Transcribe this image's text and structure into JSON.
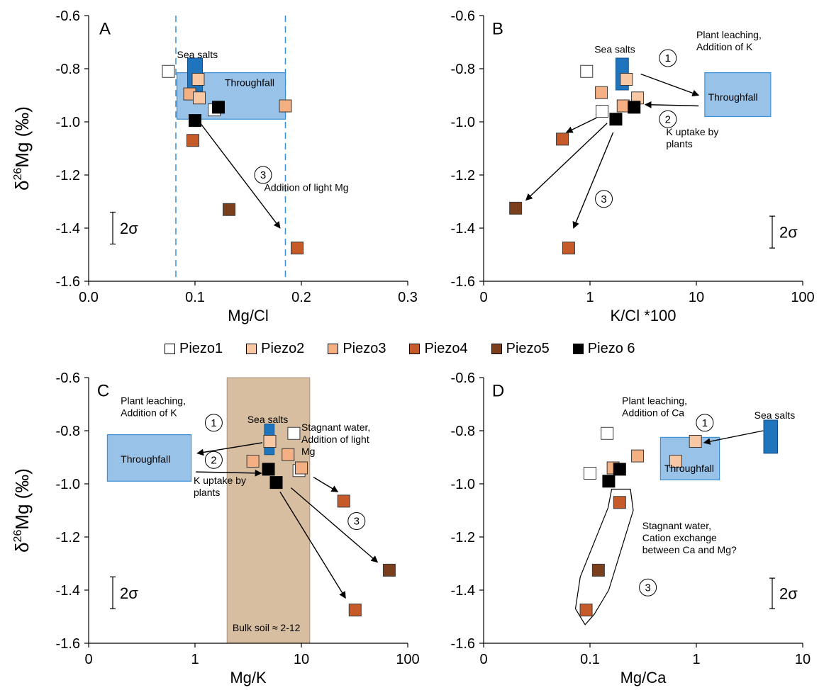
{
  "colors": {
    "throughfall": "#99C2E8",
    "throughfall_stroke": "#3A8FD6",
    "sea_salts": "#1F74BE",
    "bulk_soil": "#D8BEA0",
    "guide_line": "#3A8FD6"
  },
  "legend": [
    {
      "name": "Piezo1",
      "color": "#FFFFFF"
    },
    {
      "name": "Piezo2",
      "color": "#F8C7A4"
    },
    {
      "name": "Piezo3",
      "color": "#F4B083"
    },
    {
      "name": "Piezo4",
      "color": "#C65A28"
    },
    {
      "name": "Piezo5",
      "color": "#7B3F1E"
    },
    {
      "name": "Piezo 6",
      "color": "#000000"
    }
  ],
  "chart_data": [
    {
      "panel": "A",
      "type": "scatter",
      "x_scale": "linear",
      "xlabel": "Mg/Cl",
      "ylabel": "δ26Mg (‰)",
      "xlim": [
        0,
        0.3
      ],
      "ylim": [
        -1.6,
        -0.6
      ],
      "xticks": [
        "0.0",
        "0.1",
        "0.2",
        "0.3"
      ],
      "yticks": [
        "-0.6",
        "-0.8",
        "-1.0",
        "-1.2",
        "-1.4",
        "-1.6"
      ],
      "error_label": "2σ",
      "error_bar": [
        -1.46,
        -1.34
      ],
      "vlines": [
        0.082,
        0.185
      ],
      "boxes": [
        {
          "kind": "throughfall",
          "label": "Throughfall",
          "x": [
            0.083,
            0.185
          ],
          "y": [
            -0.99,
            -0.815
          ]
        },
        {
          "kind": "sea",
          "label": "Sea salts",
          "x": [
            0.093,
            0.107
          ],
          "y": [
            -0.885,
            -0.76
          ]
        }
      ],
      "points": [
        {
          "s": 0,
          "x": 0.075,
          "y": -0.81
        },
        {
          "s": 1,
          "x": 0.103,
          "y": -0.84
        },
        {
          "s": 2,
          "x": 0.095,
          "y": -0.895
        },
        {
          "s": 1,
          "x": 0.104,
          "y": -0.91
        },
        {
          "s": 2,
          "x": 0.185,
          "y": -0.94
        },
        {
          "s": 0,
          "x": 0.118,
          "y": -0.955
        },
        {
          "s": 5,
          "x": 0.122,
          "y": -0.945
        },
        {
          "s": 5,
          "x": 0.1,
          "y": -0.995
        },
        {
          "s": 3,
          "x": 0.098,
          "y": -1.07
        },
        {
          "s": 4,
          "x": 0.132,
          "y": -1.33
        },
        {
          "s": 3,
          "x": 0.196,
          "y": -1.475
        }
      ],
      "arrows": [
        {
          "from": [
            0.105,
            -1.005
          ],
          "to": [
            0.18,
            -1.4
          ]
        }
      ],
      "circles": [
        {
          "t": "3",
          "x": 0.164,
          "y": -1.2
        }
      ],
      "notes": [
        {
          "lines": [
            "A"
          ],
          "x": 0.01,
          "y": -0.67,
          "big": true
        },
        {
          "lines": [
            "Sea salts"
          ],
          "x": 0.083,
          "y": -0.76
        },
        {
          "lines": [
            "Throughfall"
          ],
          "x": 0.128,
          "y": -0.865
        },
        {
          "lines": [
            "Addition of light Mg"
          ],
          "x": 0.165,
          "y": -1.26
        }
      ]
    },
    {
      "panel": "B",
      "type": "scatter",
      "x_scale": "log",
      "xlabel": "K/Cl *100",
      "ylabel": "",
      "xlim": [
        0.1,
        100
      ],
      "ylim": [
        -1.6,
        -0.6
      ],
      "xticks": [
        "0",
        "1",
        "10",
        "100"
      ],
      "yticks": [
        "-0.6",
        "-0.8",
        "-1.0",
        "-1.2",
        "-1.4",
        "-1.6"
      ],
      "error_label": "2σ",
      "error_bar": [
        -1.475,
        -1.355
      ],
      "vlines": [],
      "boxes": [
        {
          "kind": "throughfall",
          "label": "Throughfall",
          "x": [
            12,
            50
          ],
          "y": [
            -0.98,
            -0.815
          ]
        },
        {
          "kind": "sea",
          "label": "Sea salts",
          "x": [
            1.75,
            2.3
          ],
          "y": [
            -0.88,
            -0.76
          ]
        }
      ],
      "points": [
        {
          "s": 0,
          "x": 0.93,
          "y": -0.81
        },
        {
          "s": 1,
          "x": 2.2,
          "y": -0.84
        },
        {
          "s": 2,
          "x": 1.28,
          "y": -0.89
        },
        {
          "s": 1,
          "x": 2.8,
          "y": -0.91
        },
        {
          "s": 0,
          "x": 1.3,
          "y": -0.96
        },
        {
          "s": 2,
          "x": 2.05,
          "y": -0.94
        },
        {
          "s": 5,
          "x": 2.6,
          "y": -0.945
        },
        {
          "s": 5,
          "x": 1.75,
          "y": -0.99
        },
        {
          "s": 3,
          "x": 0.55,
          "y": -1.065
        },
        {
          "s": 4,
          "x": 0.2,
          "y": -1.325
        },
        {
          "s": 3,
          "x": 0.63,
          "y": -1.475
        }
      ],
      "arrows": [
        {
          "from": [
            3,
            -0.82
          ],
          "to": [
            10.5,
            -0.9
          ]
        },
        {
          "from": [
            10.5,
            -0.94
          ],
          "to": [
            3.3,
            -0.935
          ]
        },
        {
          "from": [
            1.15,
            -0.985
          ],
          "to": [
            0.6,
            -1.04
          ]
        },
        {
          "from": [
            1.45,
            -1.005
          ],
          "to": [
            0.25,
            -1.295
          ]
        },
        {
          "from": [
            1.65,
            -1.04
          ],
          "to": [
            0.7,
            -1.4
          ]
        }
      ],
      "circles": [
        {
          "t": "1",
          "x": 5.4,
          "y": -0.76
        },
        {
          "t": "2",
          "x": 5.4,
          "y": -0.99
        },
        {
          "t": "3",
          "x": 1.35,
          "y": -1.29
        }
      ],
      "notes": [
        {
          "lines": [
            "B"
          ],
          "x": 0.12,
          "y": -0.67,
          "big": true
        },
        {
          "lines": [
            "Sea salts"
          ],
          "x": 1.1,
          "y": -0.74
        },
        {
          "lines": [
            "Plant leaching,",
            "Addition of K"
          ],
          "x": 10,
          "y": -0.685
        },
        {
          "lines": [
            "Throughfall"
          ],
          "x": 12.9,
          "y": -0.92
        },
        {
          "lines": [
            "K uptake by",
            "plants"
          ],
          "x": 5.2,
          "y": -1.05
        }
      ]
    },
    {
      "panel": "C",
      "type": "scatter",
      "x_scale": "log",
      "xlabel": "Mg/K",
      "ylabel": "δ26Mg (‰)",
      "xlim": [
        0.1,
        100
      ],
      "ylim": [
        -1.6,
        -0.6
      ],
      "xticks": [
        "0",
        "1",
        "10",
        "100"
      ],
      "yticks": [
        "-0.6",
        "-0.8",
        "-1.0",
        "-1.2",
        "-1.4",
        "-1.6"
      ],
      "error_label": "2σ",
      "error_bar": [
        -1.47,
        -1.35
      ],
      "vlines": [],
      "bands": [
        {
          "label": "Bulk soil ≈ 2-12",
          "x": [
            2,
            12
          ]
        }
      ],
      "boxes": [
        {
          "kind": "throughfall",
          "label": "Throughfall",
          "x": [
            0.15,
            0.92
          ],
          "y": [
            -0.99,
            -0.815
          ]
        },
        {
          "kind": "sea",
          "label": "Sea salts",
          "x": [
            4.5,
            5.55
          ],
          "y": [
            -0.89,
            -0.775
          ]
        }
      ],
      "points": [
        {
          "s": 0,
          "x": 8.5,
          "y": -0.81
        },
        {
          "s": 1,
          "x": 5.05,
          "y": -0.84
        },
        {
          "s": 2,
          "x": 3.5,
          "y": -0.915
        },
        {
          "s": 2,
          "x": 7.5,
          "y": -0.89
        },
        {
          "s": 0,
          "x": 9.5,
          "y": -0.95
        },
        {
          "s": 2,
          "x": 10,
          "y": -0.94
        },
        {
          "s": 5,
          "x": 4.9,
          "y": -0.945
        },
        {
          "s": 5,
          "x": 5.8,
          "y": -0.995
        },
        {
          "s": 3,
          "x": 25,
          "y": -1.065
        },
        {
          "s": 4,
          "x": 67,
          "y": -1.325
        },
        {
          "s": 3,
          "x": 32,
          "y": -1.475
        }
      ],
      "arrows": [
        {
          "from": [
            4.3,
            -0.845
          ],
          "to": [
            1.05,
            -0.885
          ]
        },
        {
          "from": [
            1.02,
            -0.955
          ],
          "to": [
            4.2,
            -0.96
          ]
        },
        {
          "from": [
            13,
            -0.975
          ],
          "to": [
            22,
            -1.03
          ]
        },
        {
          "from": [
            8,
            -1.015
          ],
          "to": [
            52,
            -1.295
          ]
        },
        {
          "from": [
            6.3,
            -1.03
          ],
          "to": [
            26,
            -1.43
          ]
        }
      ],
      "circles": [
        {
          "t": "1",
          "x": 1.5,
          "y": -0.77
        },
        {
          "t": "2",
          "x": 1.5,
          "y": -0.91
        },
        {
          "t": "3",
          "x": 33,
          "y": -1.14
        }
      ],
      "notes": [
        {
          "lines": [
            "C"
          ],
          "x": 0.12,
          "y": -0.67,
          "big": true
        },
        {
          "lines": [
            "Plant leaching,",
            "Addition of K"
          ],
          "x": 0.2,
          "y": -0.7
        },
        {
          "lines": [
            "Sea salts"
          ],
          "x": 3.1,
          "y": -0.77
        },
        {
          "lines": [
            "Stagnant water,",
            "Addition of light",
            "Mg"
          ],
          "x": 10,
          "y": -0.8
        },
        {
          "lines": [
            "Throughfall"
          ],
          "x": 0.2,
          "y": -0.92
        },
        {
          "lines": [
            "K uptake by",
            "plants"
          ],
          "x": 0.97,
          "y": -1.0
        },
        {
          "lines": [
            "Bulk soil ≈ 2-12"
          ],
          "x": 2.25,
          "y": -1.555
        }
      ]
    },
    {
      "panel": "D",
      "type": "scatter",
      "x_scale": "log",
      "xlabel": "Mg/Ca",
      "ylabel": "",
      "xlim": [
        0.01,
        10
      ],
      "ylim": [
        -1.6,
        -0.6
      ],
      "xticks": [
        "0",
        "0.1",
        "1",
        "10"
      ],
      "yticks": [
        "-0.6",
        "-0.8",
        "-1.0",
        "-1.2",
        "-1.4",
        "-1.6"
      ],
      "error_label": "2σ",
      "error_bar": [
        -1.47,
        -1.355
      ],
      "vlines": [],
      "boxes": [
        {
          "kind": "throughfall",
          "label": "Throughfall",
          "x": [
            0.46,
            1.65
          ],
          "y": [
            -0.985,
            -0.825
          ]
        },
        {
          "kind": "sea",
          "label": "Sea salts",
          "x": [
            4.3,
            5.8
          ],
          "y": [
            -0.885,
            -0.76
          ]
        }
      ],
      "points": [
        {
          "s": 0,
          "x": 0.145,
          "y": -0.81
        },
        {
          "s": 1,
          "x": 0.98,
          "y": -0.84
        },
        {
          "s": 2,
          "x": 0.28,
          "y": -0.895
        },
        {
          "s": 1,
          "x": 0.64,
          "y": -0.915
        },
        {
          "s": 0,
          "x": 0.1,
          "y": -0.96
        },
        {
          "s": 2,
          "x": 0.165,
          "y": -0.94
        },
        {
          "s": 5,
          "x": 0.19,
          "y": -0.945
        },
        {
          "s": 5,
          "x": 0.15,
          "y": -0.99
        },
        {
          "s": 3,
          "x": 0.19,
          "y": -1.07
        },
        {
          "s": 4,
          "x": 0.12,
          "y": -1.325
        },
        {
          "s": 3,
          "x": 0.092,
          "y": -1.475
        }
      ],
      "arrows": [
        {
          "from": [
            4.25,
            -0.8
          ],
          "to": [
            1.18,
            -0.845
          ]
        }
      ],
      "circles": [
        {
          "t": "1",
          "x": 1.2,
          "y": -0.77
        },
        {
          "t": "3",
          "x": 0.35,
          "y": -1.39
        }
      ],
      "notes": [
        {
          "lines": [
            "D"
          ],
          "x": 0.012,
          "y": -0.67,
          "big": true
        },
        {
          "lines": [
            "Plant leaching,",
            "Addition of Ca"
          ],
          "x": 0.2,
          "y": -0.7
        },
        {
          "lines": [
            "Sea salts"
          ],
          "x": 3.5,
          "y": -0.755
        },
        {
          "lines": [
            "Throughfall"
          ],
          "x": 0.5,
          "y": -0.955
        },
        {
          "lines": [
            "Stagnant water,",
            "Cation exchange",
            "between Ca and Mg?"
          ],
          "x": 0.31,
          "y": -1.17
        }
      ]
    }
  ]
}
